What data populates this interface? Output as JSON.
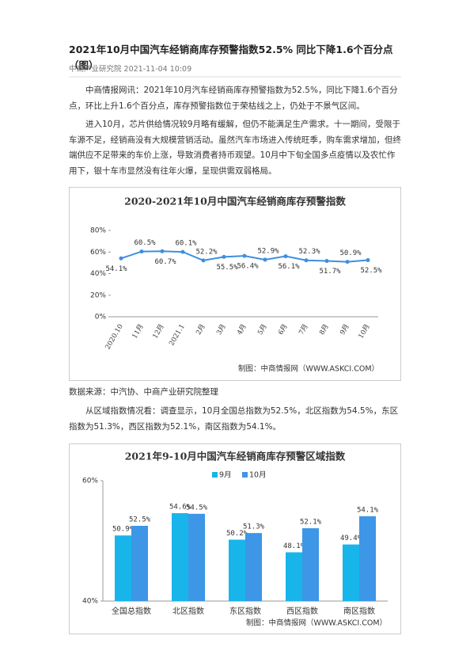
{
  "article": {
    "title": "2021年10月中国汽车经销商库存预警指数52.5% 同比下降1.6个百分点（图）",
    "meta": "中商产业研究院 2021-11-04 10:09",
    "paragraphs": [
      "中商情报网讯：2021年10月汽车经销商库存预警指数为52.5%，同比下降1.6个百分点，环比上升1.6个百分点，库存预警指数位于荣枯线之上，仍处于不景气区间。",
      "进入10月，芯片供给情况较9月略有缓解，但仍不能满足生产需求。十一期间，受限于车源不足，经销商没有大规模营销活动。虽然汽车市场进入传统旺季，购车需求增加，但终端供应不足带来的车价上涨，导致消费者持币观望。10月中下旬全国多点疫情以及农忙作用下，银十车市显然没有往年火爆，呈现供需双弱格局。",
      "数据来源：中汽协、中商产业研究院整理",
      "从区域指数情况看：调查显示，10月全国总指数为52.5%，北区指数为54.5%，东区指数为51.3%，西区指数为52.1%，南区指数为54.1%。"
    ]
  },
  "chart_data": [
    {
      "type": "line",
      "title": "2020-2021年10月中国汽车经销商库存预警指数",
      "categories": [
        "2020.10",
        "11月",
        "12月",
        "2021.1",
        "2月",
        "3月",
        "4月",
        "5月",
        "6月",
        "7月",
        "8月",
        "9月",
        "10月"
      ],
      "values": [
        54.1,
        60.5,
        60.7,
        60.1,
        52.2,
        55.5,
        56.4,
        52.9,
        56.1,
        52.3,
        51.7,
        50.9,
        52.5
      ],
      "value_labels": [
        "54.1%",
        "60.5%",
        "60.7%",
        "60.1%",
        "52.2%",
        "55.5%",
        "56.4%",
        "52.9%",
        "56.1%",
        "52.3%",
        "51.7%",
        "50.9%",
        "52.5%"
      ],
      "color": "#3d8fe0",
      "ylim": [
        0,
        80
      ],
      "yticks": [
        {
          "value": 0,
          "label": "0%"
        },
        {
          "value": 20,
          "label": "20%"
        },
        {
          "value": 40,
          "label": "40%"
        },
        {
          "value": 60,
          "label": "60%"
        },
        {
          "value": 80,
          "label": "80%"
        }
      ],
      "credit": "制图：中商情报网（WWW.ASKCI.COM）"
    },
    {
      "type": "bar",
      "title": "2021年9-10月中国汽车经销商库存预警区域指数",
      "categories": [
        "全国总指数",
        "北区指数",
        "东区指数",
        "西区指数",
        "南区指数"
      ],
      "series": [
        {
          "name": "9月",
          "color": "#17b5ea",
          "values": [
            50.9,
            54.6,
            50.2,
            48.1,
            49.4
          ],
          "value_labels": [
            "50.9%",
            "54.6%",
            "50.2%",
            "48.1%",
            "49.4%"
          ]
        },
        {
          "name": "10月",
          "color": "#3d96e6",
          "values": [
            52.5,
            54.5,
            51.3,
            52.1,
            54.1
          ],
          "value_labels": [
            "52.5%",
            "54.5%",
            "51.3%",
            "52.1%",
            "54.1%"
          ]
        }
      ],
      "ylim": [
        40,
        60
      ],
      "yticks": [
        {
          "value": 40,
          "label": "40%"
        },
        {
          "value": 60,
          "label": "60%"
        }
      ],
      "legend": "top",
      "credit": "制图：中商情报网（WWW.ASKCI.COM）"
    }
  ]
}
